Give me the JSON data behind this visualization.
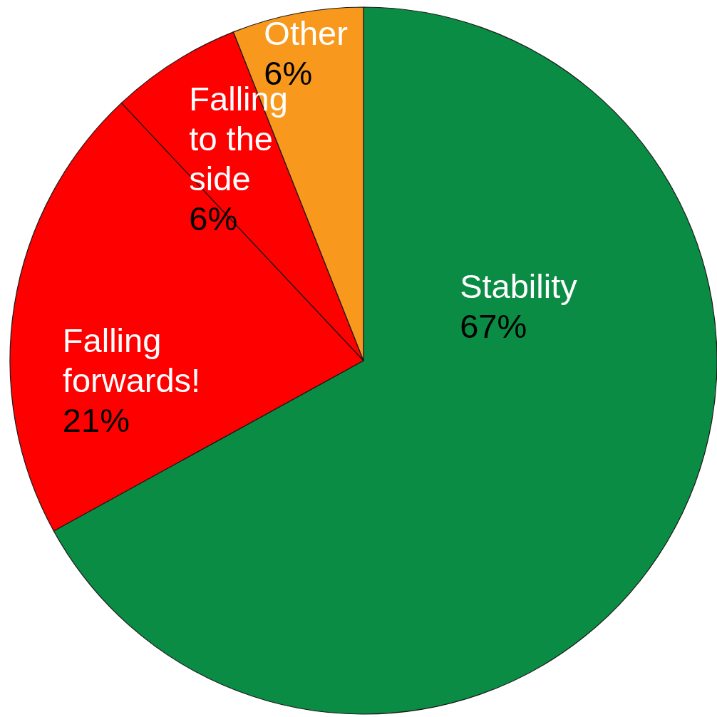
{
  "chart_data": {
    "type": "pie",
    "categories": [
      "Stability",
      "Falling forwards!",
      "Falling to the side",
      "Other"
    ],
    "values": [
      67,
      21,
      6,
      6
    ],
    "colors": [
      "#0a8c44",
      "#ff0000",
      "#ff0000",
      "#f8991d"
    ],
    "value_labels": [
      "67%",
      "21%",
      "6%",
      "6%"
    ]
  }
}
